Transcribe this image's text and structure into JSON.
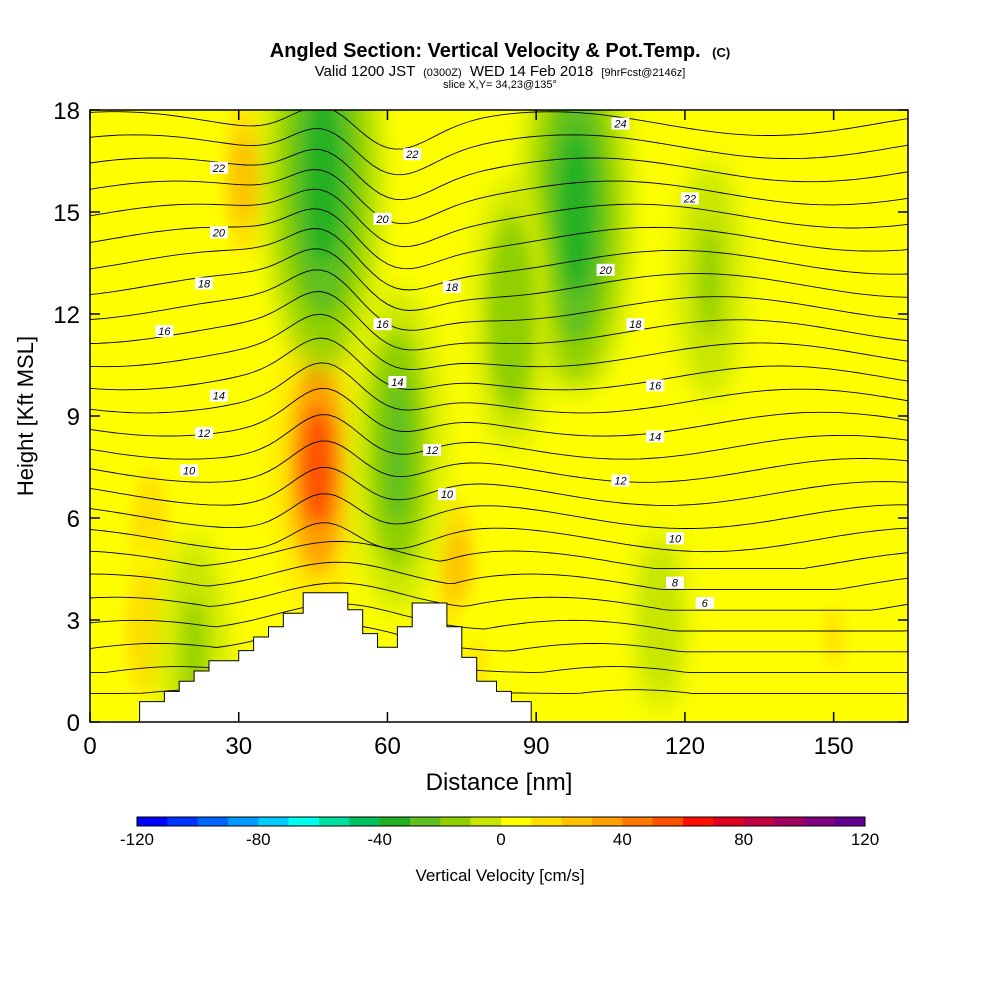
{
  "chart_data": {
    "type": "heatmap",
    "title": "Angled Section: Vertical Velocity & Pot.Temp.",
    "title_tag": "(C)",
    "subtitle_prefix": "Valid 1200 JST",
    "subtitle_utc": "(0300Z)",
    "subtitle_date": "WED 14 Feb 2018",
    "subtitle_fcst": "[9hrFcst@2146z]",
    "slice_label": "slice X,Y= 34,23@135°",
    "xlabel": "Distance [nm]",
    "ylabel": "Height [Kft MSL]",
    "xlim": [
      0,
      165
    ],
    "ylim": [
      0,
      18
    ],
    "x_ticks": [
      0,
      30,
      60,
      90,
      120,
      150
    ],
    "y_ticks": [
      0,
      3,
      6,
      9,
      12,
      15,
      18
    ],
    "colorbar": {
      "label": "Vertical Velocity [cm/s]",
      "range": [
        -120,
        120
      ],
      "ticks": [
        -120,
        -80,
        -40,
        0,
        40,
        80,
        120
      ],
      "colors": [
        "#0000ff",
        "#0033ff",
        "#0066ff",
        "#0099ff",
        "#00ccff",
        "#00ffee",
        "#00e0a0",
        "#00c060",
        "#20b020",
        "#60c020",
        "#90d000",
        "#c8e600",
        "#ffff00",
        "#ffe000",
        "#ffc000",
        "#ffa000",
        "#ff7800",
        "#ff5000",
        "#ff1000",
        "#e00020",
        "#c00040",
        "#a00060",
        "#800080",
        "#600090"
      ]
    },
    "updrafts": [
      {
        "x": 46,
        "z": 7.5,
        "w": 50
      },
      {
        "x": 31,
        "z": 16,
        "w": 25
      },
      {
        "x": 74,
        "z": 4.5,
        "w": 20
      },
      {
        "x": 12,
        "z": 5.5,
        "w": 15
      },
      {
        "x": 11,
        "z": 2.7,
        "w": 15
      },
      {
        "x": 78,
        "z": 1.5,
        "w": 10
      },
      {
        "x": 150,
        "z": 2.5,
        "w": 10
      }
    ],
    "downdrafts": [
      {
        "x": 47,
        "z": 16,
        "w": -40
      },
      {
        "x": 62,
        "z": 8,
        "w": -30
      },
      {
        "x": 98,
        "z": 15,
        "w": -35
      },
      {
        "x": 85,
        "z": 12,
        "w": -20
      },
      {
        "x": 125,
        "z": 13,
        "w": -15
      },
      {
        "x": 21,
        "z": 2,
        "w": -15
      },
      {
        "x": 115,
        "z": 3,
        "w": -5
      }
    ],
    "theta_labels": [
      {
        "text": "24",
        "x": 107,
        "z": 17.6
      },
      {
        "text": "22",
        "x": 26,
        "z": 16.3
      },
      {
        "text": "22",
        "x": 65,
        "z": 16.7
      },
      {
        "text": "22",
        "x": 121,
        "z": 15.4
      },
      {
        "text": "20",
        "x": 26,
        "z": 14.4
      },
      {
        "text": "20",
        "x": 59,
        "z": 14.8
      },
      {
        "text": "20",
        "x": 104,
        "z": 13.3
      },
      {
        "text": "18",
        "x": 23,
        "z": 12.9
      },
      {
        "text": "18",
        "x": 73,
        "z": 12.8
      },
      {
        "text": "18",
        "x": 110,
        "z": 11.7
      },
      {
        "text": "16",
        "x": 15,
        "z": 11.5
      },
      {
        "text": "16",
        "x": 59,
        "z": 11.7
      },
      {
        "text": "16",
        "x": 114,
        "z": 9.9
      },
      {
        "text": "14",
        "x": 26,
        "z": 9.6
      },
      {
        "text": "14",
        "x": 62,
        "z": 10.0
      },
      {
        "text": "14",
        "x": 114,
        "z": 8.4
      },
      {
        "text": "12",
        "x": 23,
        "z": 8.5
      },
      {
        "text": "12",
        "x": 69,
        "z": 8.0
      },
      {
        "text": "12",
        "x": 107,
        "z": 7.1
      },
      {
        "text": "10",
        "x": 20,
        "z": 7.4
      },
      {
        "text": "10",
        "x": 72,
        "z": 6.7
      },
      {
        "text": "10",
        "x": 118,
        "z": 5.4
      },
      {
        "text": "8",
        "x": 118,
        "z": 4.1
      },
      {
        "text": "6",
        "x": 124,
        "z": 3.5
      }
    ],
    "terrain": [
      [
        0,
        0
      ],
      [
        10,
        0
      ],
      [
        10,
        0.6
      ],
      [
        15,
        0.6
      ],
      [
        15,
        0.9
      ],
      [
        18,
        0.9
      ],
      [
        18,
        1.2
      ],
      [
        21,
        1.2
      ],
      [
        21,
        1.5
      ],
      [
        24,
        1.5
      ],
      [
        24,
        1.8
      ],
      [
        30,
        1.8
      ],
      [
        30,
        2.1
      ],
      [
        33,
        2.1
      ],
      [
        33,
        2.5
      ],
      [
        36,
        2.5
      ],
      [
        36,
        2.8
      ],
      [
        39,
        2.8
      ],
      [
        39,
        3.2
      ],
      [
        43,
        3.2
      ],
      [
        43,
        3.8
      ],
      [
        52,
        3.8
      ],
      [
        52,
        3.3
      ],
      [
        55,
        3.3
      ],
      [
        55,
        2.6
      ],
      [
        58,
        2.6
      ],
      [
        58,
        2.2
      ],
      [
        62,
        2.2
      ],
      [
        62,
        2.8
      ],
      [
        65,
        2.8
      ],
      [
        65,
        3.5
      ],
      [
        72,
        3.5
      ],
      [
        72,
        2.8
      ],
      [
        75,
        2.8
      ],
      [
        75,
        1.9
      ],
      [
        78,
        1.9
      ],
      [
        78,
        1.2
      ],
      [
        82,
        1.2
      ],
      [
        82,
        0.9
      ],
      [
        85,
        0.9
      ],
      [
        85,
        0.6
      ],
      [
        89,
        0.6
      ],
      [
        89,
        0
      ],
      [
        165,
        0
      ]
    ]
  }
}
